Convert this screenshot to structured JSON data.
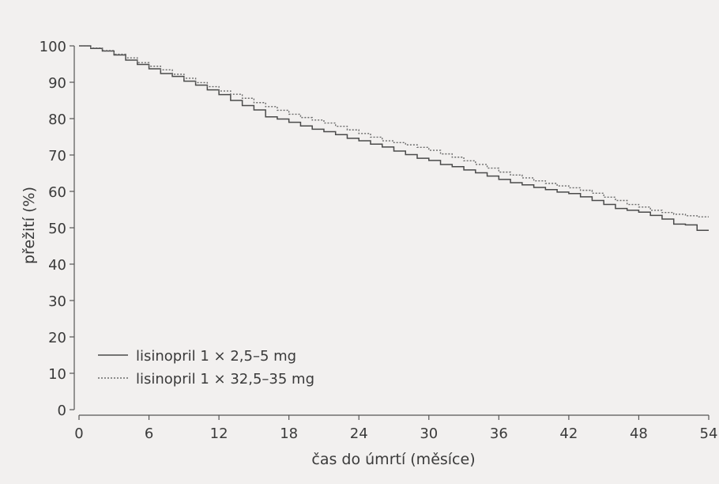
{
  "chart_data": {
    "type": "line",
    "title": "",
    "xlabel": "čas do úmrtí (měsíce)",
    "ylabel": "přežití (%)",
    "xlim": [
      0,
      54
    ],
    "ylim": [
      0,
      100
    ],
    "xticks": [
      0,
      6,
      12,
      18,
      24,
      30,
      36,
      42,
      48,
      54
    ],
    "yticks": [
      0,
      10,
      20,
      30,
      40,
      50,
      60,
      70,
      80,
      90,
      100
    ],
    "grid": false,
    "legend_position": "bottom-left",
    "series": [
      {
        "name": "lisinopril 1 × 2,5–5 mg",
        "style": "solid",
        "color": "#4a4a4a",
        "x": [
          0,
          1,
          2,
          3,
          4,
          5,
          6,
          7,
          8,
          9,
          10,
          11,
          12,
          13,
          14,
          15,
          16,
          17,
          18,
          19,
          20,
          21,
          22,
          23,
          24,
          25,
          26,
          27,
          28,
          29,
          30,
          31,
          32,
          33,
          34,
          35,
          36,
          37,
          38,
          39,
          40,
          41,
          42,
          43,
          44,
          45,
          46,
          47,
          48,
          49,
          50,
          51,
          52,
          53,
          54
        ],
        "y": [
          100,
          99.3,
          98.6,
          97.5,
          96.1,
          94.9,
          93.7,
          92.4,
          91.6,
          90.3,
          89.2,
          87.9,
          86.6,
          85.0,
          83.6,
          82.4,
          80.5,
          79.9,
          79.0,
          78.0,
          77.1,
          76.4,
          75.6,
          74.6,
          73.9,
          73.0,
          72.2,
          71.1,
          70.1,
          69.1,
          68.5,
          67.4,
          66.8,
          65.9,
          65.1,
          64.2,
          63.3,
          62.4,
          61.8,
          61.1,
          60.5,
          59.8,
          59.4,
          58.5,
          57.5,
          56.4,
          55.3,
          54.8,
          54.3,
          53.4,
          52.4,
          51.0,
          50.8,
          49.3,
          49.3
        ]
      },
      {
        "name": "lisinopril 1 × 32,5–35 mg",
        "style": "dotted",
        "color": "#6a6a6a",
        "x": [
          0,
          1,
          2,
          3,
          4,
          5,
          6,
          7,
          8,
          9,
          10,
          11,
          12,
          13,
          14,
          15,
          16,
          17,
          18,
          19,
          20,
          21,
          22,
          23,
          24,
          25,
          26,
          27,
          28,
          29,
          30,
          31,
          32,
          33,
          34,
          35,
          36,
          37,
          38,
          39,
          40,
          41,
          42,
          43,
          44,
          45,
          46,
          47,
          48,
          49,
          50,
          51,
          52,
          53,
          54
        ],
        "y": [
          100,
          99.4,
          98.7,
          97.7,
          96.7,
          95.4,
          94.4,
          93.4,
          92.2,
          91.1,
          89.9,
          88.8,
          87.6,
          86.7,
          85.6,
          84.4,
          83.3,
          82.3,
          81.2,
          80.3,
          79.6,
          78.8,
          77.9,
          76.9,
          75.9,
          74.9,
          73.9,
          73.4,
          72.8,
          72.1,
          71.3,
          70.3,
          69.4,
          68.4,
          67.4,
          66.4,
          65.3,
          64.5,
          63.7,
          62.9,
          62.2,
          61.5,
          61.0,
          60.3,
          59.5,
          58.4,
          57.5,
          56.4,
          55.7,
          54.8,
          54.2,
          53.7,
          53.3,
          53.0,
          53.0
        ]
      }
    ]
  }
}
